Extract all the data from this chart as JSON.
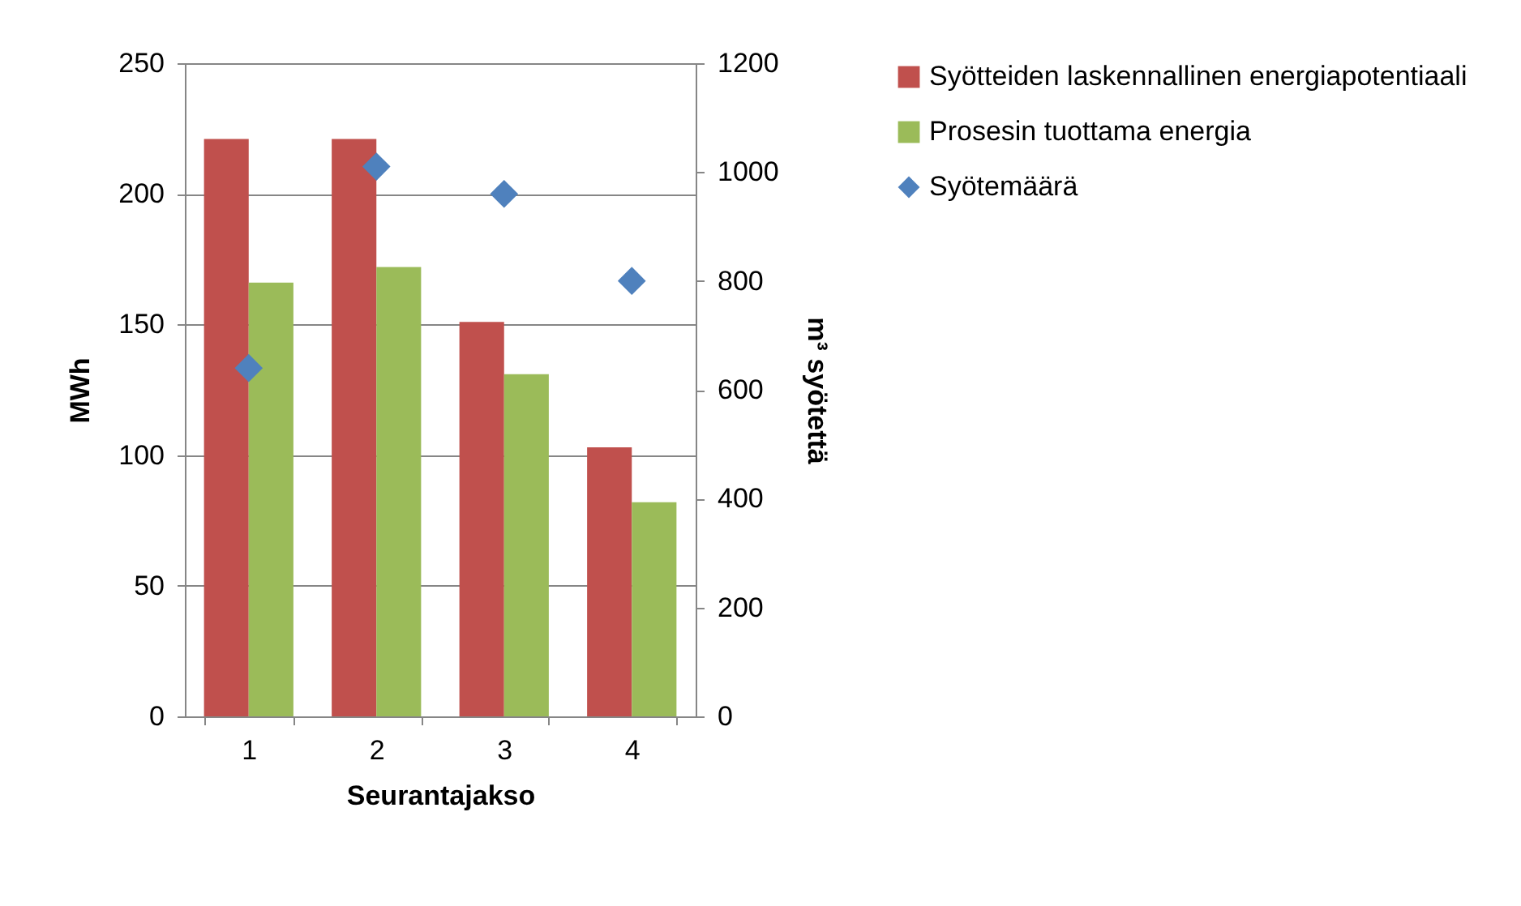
{
  "chart_data": {
    "type": "bar",
    "xlabel": "Seurantajakso",
    "ylabel": "MWh",
    "y2label": "m³ syötettä",
    "categories": [
      "1",
      "2",
      "3",
      "4"
    ],
    "series": [
      {
        "name": "Syötteiden laskennallinen energiapotentiaali",
        "color": "#c0504d",
        "values": [
          221,
          221,
          151,
          103
        ]
      },
      {
        "name": "Prosesin tuottama energia",
        "color": "#9bbb59",
        "values": [
          166,
          172,
          131,
          82
        ]
      },
      {
        "name": "Syötemäärä",
        "type": "scatter",
        "axis": "y2",
        "marker": "diamond",
        "color": "#4f81bd",
        "values": [
          640,
          1010,
          960,
          800
        ]
      }
    ],
    "ylim": [
      0,
      250
    ],
    "yticks": [
      0,
      50,
      100,
      150,
      200,
      250
    ],
    "y2lim": [
      0,
      1200
    ],
    "y2ticks": [
      0,
      200,
      400,
      600,
      800,
      1000,
      1200
    ],
    "grid": "y",
    "legend": "right"
  }
}
